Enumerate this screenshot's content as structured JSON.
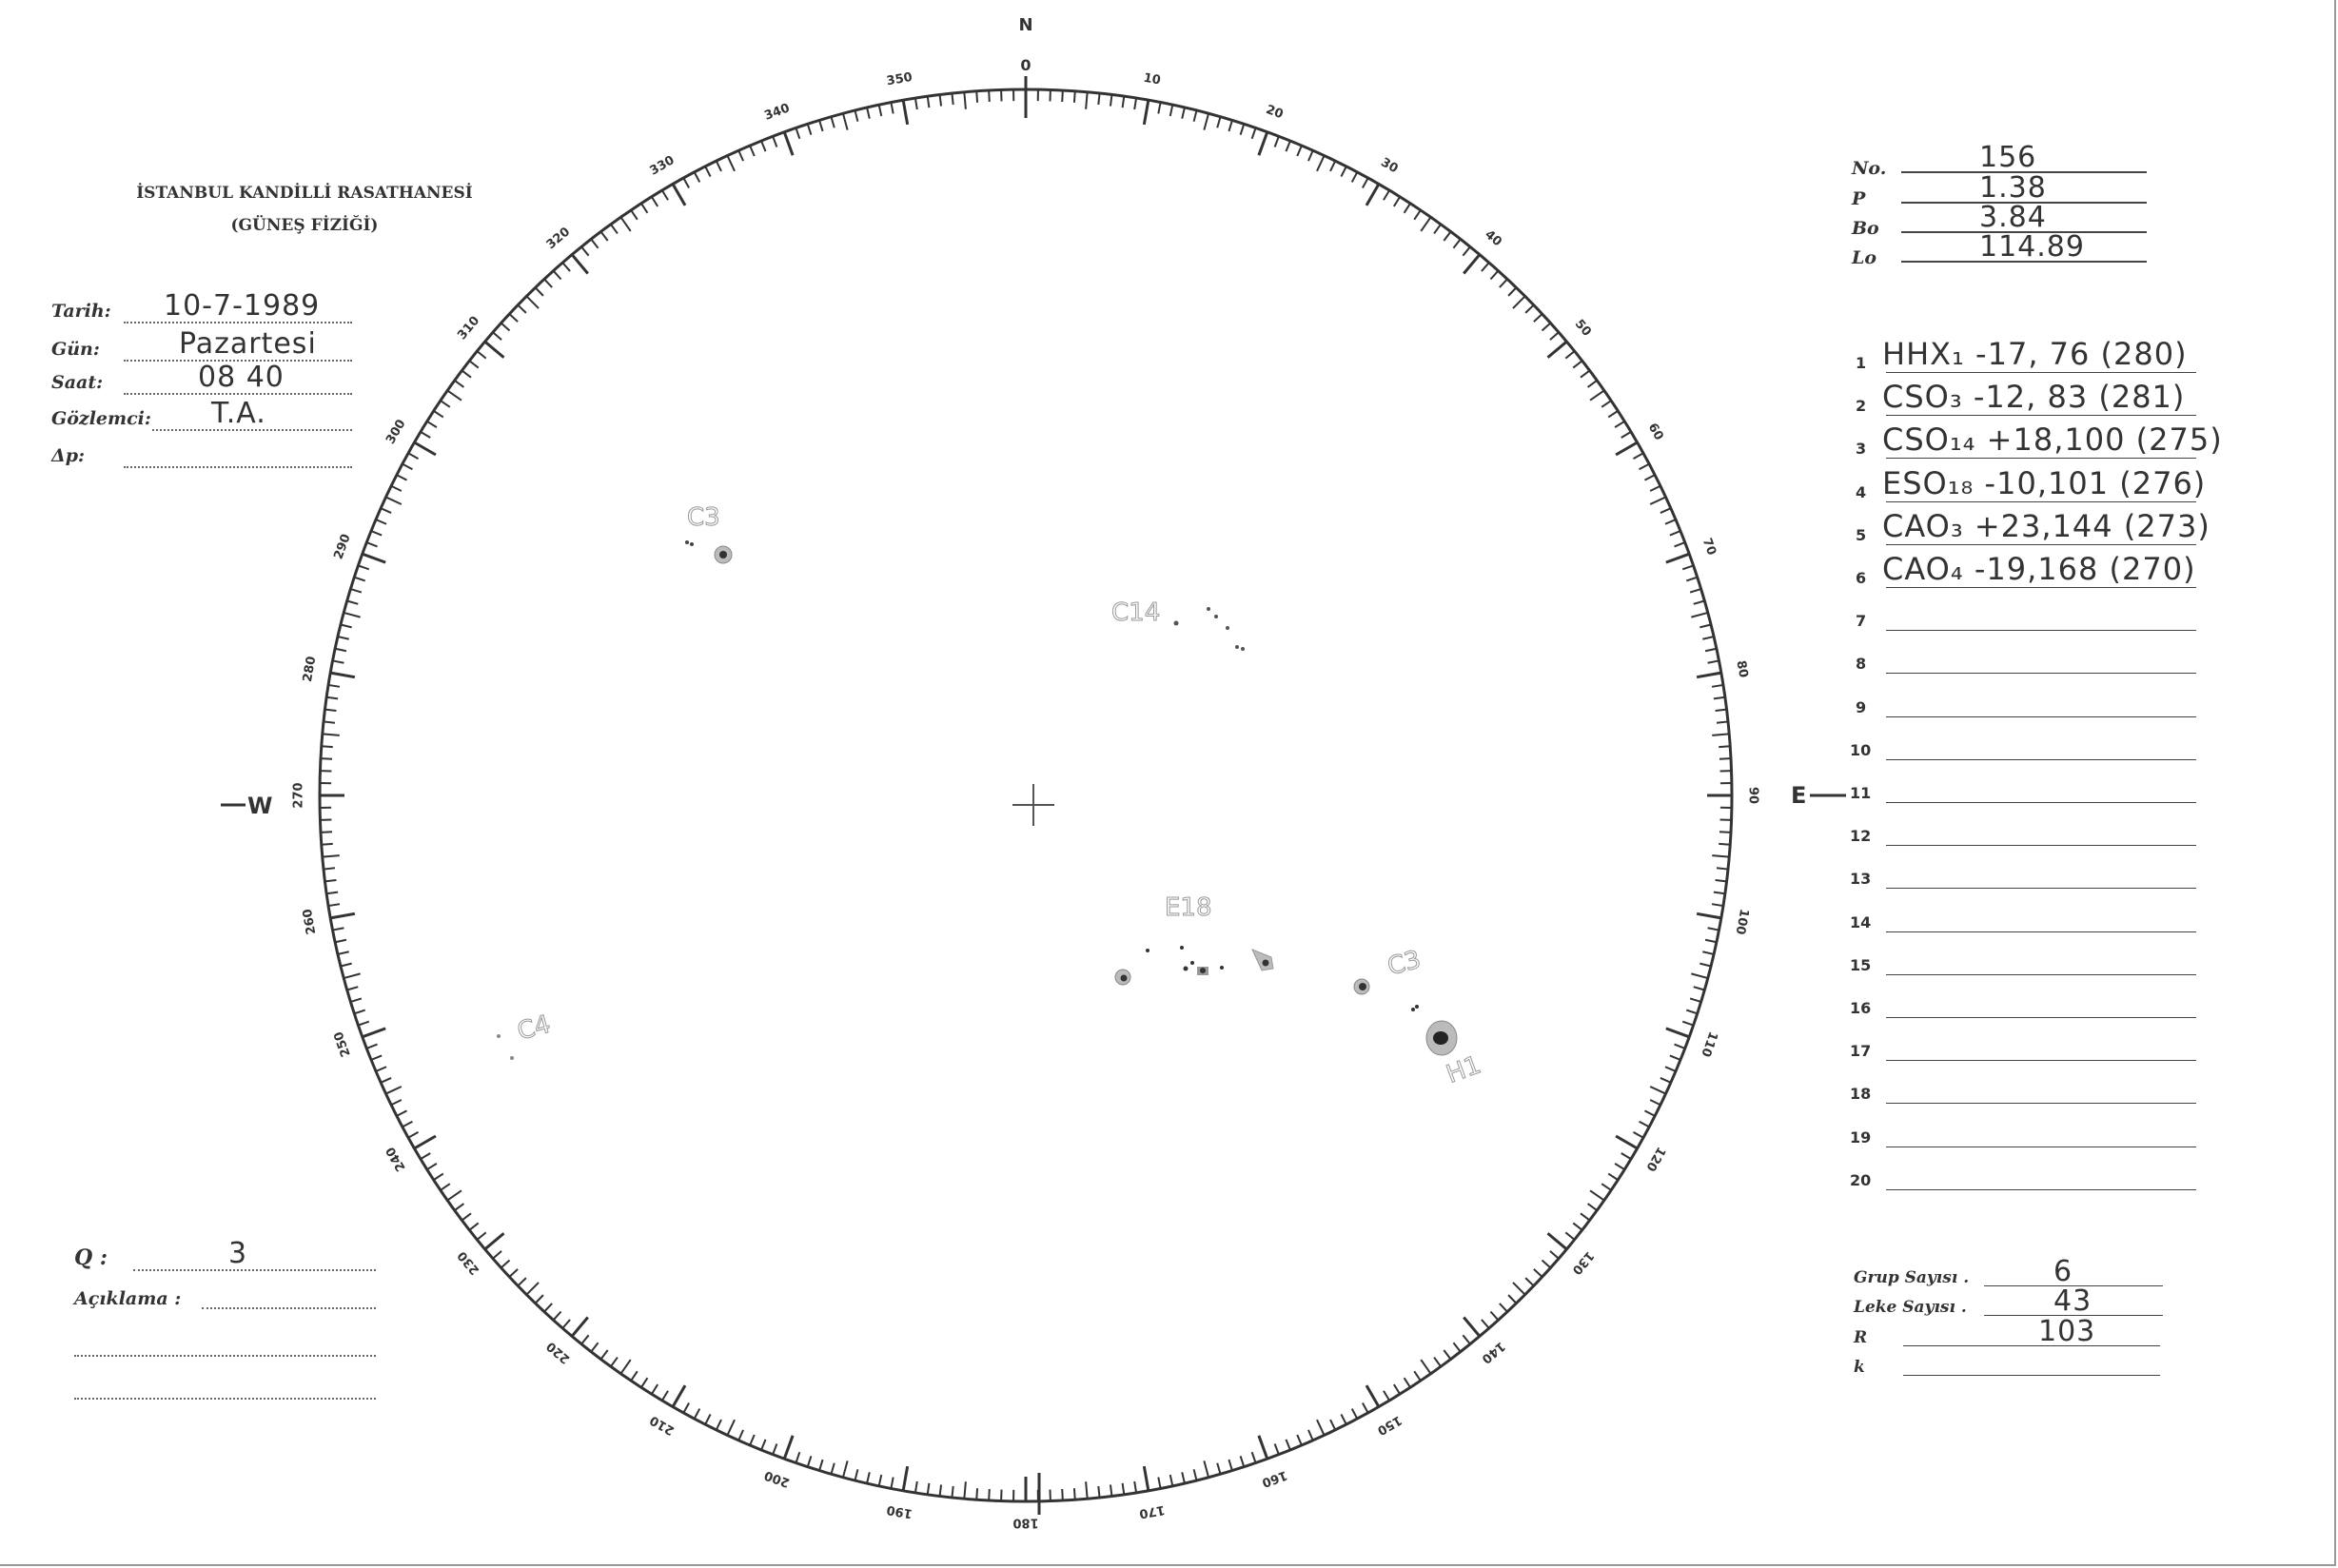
{
  "header": {
    "institution": "İSTANBUL KANDİLLİ RASATHANESİ",
    "department": "(GÜNEŞ FİZİĞİ)"
  },
  "observation": {
    "fields": [
      {
        "label": "Tarih:",
        "value": "10-7-1989"
      },
      {
        "label": "Gün:",
        "value": "Pazartesi"
      },
      {
        "label": "Saat:",
        "value": "08 40"
      },
      {
        "label": "Gözlemci:",
        "value": "T.A."
      },
      {
        "label": "Δp:",
        "value": ""
      }
    ]
  },
  "ephemeris": [
    {
      "label": "No.",
      "value": "156"
    },
    {
      "label": "P",
      "value": "1.38"
    },
    {
      "label": "Bo",
      "value": "3.84"
    },
    {
      "label": "Lo",
      "value": "114.89"
    }
  ],
  "groups": [
    {
      "n": "1",
      "entry": "HHX₁ -17, 76 (280)"
    },
    {
      "n": "2",
      "entry": "CSO₃ -12, 83 (281)"
    },
    {
      "n": "3",
      "entry": "CSO₁₄ +18,100 (275)"
    },
    {
      "n": "4",
      "entry": "ESO₁₈ -10,101 (276)"
    },
    {
      "n": "5",
      "entry": "CAO₃ +23,144 (273)"
    },
    {
      "n": "6",
      "entry": "CAO₄ -19,168 (270)"
    },
    {
      "n": "7",
      "entry": ""
    },
    {
      "n": "8",
      "entry": ""
    },
    {
      "n": "9",
      "entry": ""
    },
    {
      "n": "10",
      "entry": ""
    },
    {
      "n": "11",
      "entry": ""
    },
    {
      "n": "12",
      "entry": ""
    },
    {
      "n": "13",
      "entry": ""
    },
    {
      "n": "14",
      "entry": ""
    },
    {
      "n": "15",
      "entry": ""
    },
    {
      "n": "16",
      "entry": ""
    },
    {
      "n": "17",
      "entry": ""
    },
    {
      "n": "18",
      "entry": ""
    },
    {
      "n": "19",
      "entry": ""
    },
    {
      "n": "20",
      "entry": ""
    }
  ],
  "totals": [
    {
      "label": "Grup Sayısı .",
      "value": "6"
    },
    {
      "label": "Leke Sayısı .",
      "value": "43"
    },
    {
      "label": "R",
      "value": "103"
    },
    {
      "label": "k",
      "value": ""
    }
  ],
  "quality": {
    "label": "Q :",
    "value": "3"
  },
  "remarks": {
    "label": "Açıklama :",
    "value": ""
  },
  "disk": {
    "north": "N",
    "west": "W",
    "east": "E",
    "scale_labels": [
      "0",
      "10",
      "20",
      "30",
      "40",
      "50",
      "60",
      "70",
      "80",
      "90",
      "100",
      "110",
      "120",
      "130",
      "140",
      "150",
      "160",
      "170",
      "180",
      "190",
      "200",
      "210",
      "220",
      "230",
      "240",
      "250",
      "260",
      "270",
      "280",
      "290",
      "300",
      "310",
      "320",
      "330",
      "340",
      "350"
    ],
    "spot_labels": [
      "C3",
      "C14",
      "E18",
      "C3",
      "H1",
      "C4"
    ]
  },
  "colors": {
    "ink": "#333333",
    "pencil": "#888888",
    "paper": "#ffffff"
  }
}
